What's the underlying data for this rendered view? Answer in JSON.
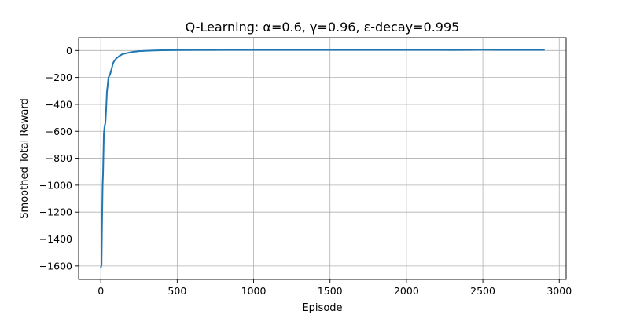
{
  "chart_data": {
    "type": "line",
    "title": "Q-Learning: α=0.6, γ=0.96, ε-decay=0.995",
    "xlabel": "Episode",
    "ylabel": "Smoothed Total Reward",
    "xlim": [
      -145,
      3045
    ],
    "ylim": [
      -1700,
      95
    ],
    "xticks": [
      0,
      500,
      1000,
      1500,
      2000,
      2500,
      3000
    ],
    "xtick_labels": [
      "0",
      "500",
      "1000",
      "1500",
      "2000",
      "2500",
      "3000"
    ],
    "yticks": [
      0,
      -200,
      -400,
      -600,
      -800,
      -1000,
      -1200,
      -1400,
      -1600
    ],
    "ytick_labels": [
      "0",
      "−200",
      "−400",
      "−600",
      "−800",
      "−1000",
      "−1200",
      "−1400",
      "−1600"
    ],
    "grid": true,
    "series": [
      {
        "color": "#1f77b4",
        "x": [
          0,
          5,
          8,
          12,
          15,
          20,
          25,
          30,
          35,
          40,
          45,
          50,
          60,
          70,
          80,
          90,
          100,
          120,
          140,
          160,
          200,
          250,
          300,
          350,
          400,
          500,
          600,
          700,
          800,
          900,
          1000,
          1200,
          1400,
          1600,
          1800,
          2000,
          2200,
          2300,
          2400,
          2500,
          2600,
          2700,
          2800,
          2900
        ],
        "y": [
          -1615,
          -1590,
          -1300,
          -1000,
          -900,
          -620,
          -560,
          -540,
          -440,
          -310,
          -260,
          -200,
          -180,
          -140,
          -95,
          -75,
          -60,
          -42,
          -28,
          -22,
          -12,
          -5,
          -2,
          0,
          2,
          3,
          4,
          4,
          5,
          5,
          5,
          5,
          5,
          5,
          5,
          5,
          5,
          4,
          5,
          6,
          5,
          5,
          5,
          5
        ]
      }
    ]
  }
}
